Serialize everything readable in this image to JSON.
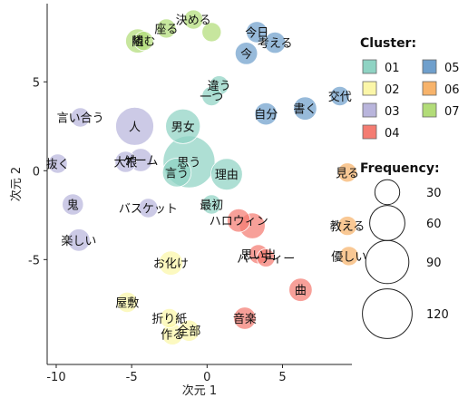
{
  "chart_data": {
    "type": "scatter",
    "xlabel": "次元 1",
    "ylabel": "次元 2",
    "xlim": [
      -10.6,
      9.6
    ],
    "ylim": [
      -10.9,
      9.4
    ],
    "xticks": [
      -10,
      -5,
      0,
      5
    ],
    "yticks": [
      -5,
      0,
      5
    ],
    "grid": false,
    "legend_placement": "right",
    "cluster_legend": {
      "title": "Cluster:",
      "items": [
        {
          "name": "01",
          "color": "#8fd3c3"
        },
        {
          "name": "02",
          "color": "#fbf6a8"
        },
        {
          "name": "03",
          "color": "#b9b5dc"
        },
        {
          "name": "04",
          "color": "#f47c72"
        },
        {
          "name": "05",
          "color": "#6f9fcc"
        },
        {
          "name": "06",
          "color": "#f7b36b"
        },
        {
          "name": "07",
          "color": "#b2dc78"
        }
      ]
    },
    "size_legend": {
      "title": "Frequency:",
      "values": [
        30,
        60,
        90,
        120
      ]
    },
    "points": [
      {
        "word": "座る",
        "x": -2.7,
        "y": 8.0,
        "freq": 18,
        "cluster": "07"
      },
      {
        "word": "決める",
        "x": -0.9,
        "y": 8.5,
        "freq": 18,
        "cluster": "07"
      },
      {
        "word": "隣",
        "x": -4.6,
        "y": 7.3,
        "freq": 28,
        "cluster": "07"
      },
      {
        "word": "組む",
        "x": -4.2,
        "y": 7.3,
        "freq": 18,
        "cluster": "07"
      },
      {
        "word": "",
        "x": 0.3,
        "y": 7.8,
        "freq": 18,
        "cluster": "07"
      },
      {
        "word": "今日",
        "x": 3.3,
        "y": 7.8,
        "freq": 22,
        "cluster": "05"
      },
      {
        "word": "考える",
        "x": 4.5,
        "y": 7.2,
        "freq": 22,
        "cluster": "05"
      },
      {
        "word": "今",
        "x": 2.6,
        "y": 6.6,
        "freq": 24,
        "cluster": "05"
      },
      {
        "word": "違う",
        "x": 0.8,
        "y": 4.8,
        "freq": 18,
        "cluster": "01"
      },
      {
        "word": "一つ",
        "x": 0.3,
        "y": 4.2,
        "freq": 18,
        "cluster": "01"
      },
      {
        "word": "交代",
        "x": 8.8,
        "y": 4.2,
        "freq": 18,
        "cluster": "05"
      },
      {
        "word": "言い合う",
        "x": -8.4,
        "y": 3.0,
        "freq": 18,
        "cluster": "03"
      },
      {
        "word": "自分",
        "x": 3.9,
        "y": 3.2,
        "freq": 24,
        "cluster": "05"
      },
      {
        "word": "書く",
        "x": 6.5,
        "y": 3.5,
        "freq": 26,
        "cluster": "05"
      },
      {
        "word": "人",
        "x": -4.8,
        "y": 2.5,
        "freq": 70,
        "cluster": "03"
      },
      {
        "word": "男女",
        "x": -1.6,
        "y": 2.5,
        "freq": 58,
        "cluster": "01"
      },
      {
        "word": "ゲーム",
        "x": -4.4,
        "y": 0.6,
        "freq": 26,
        "cluster": "03"
      },
      {
        "word": "思う",
        "x": -1.2,
        "y": 0.5,
        "freq": 130,
        "cluster": "01"
      },
      {
        "word": "抜く",
        "x": -9.9,
        "y": 0.4,
        "freq": 18,
        "cluster": "03"
      },
      {
        "word": "大根",
        "x": -5.4,
        "y": 0.5,
        "freq": 22,
        "cluster": "03"
      },
      {
        "word": "言う",
        "x": -2.0,
        "y": -0.1,
        "freq": 40,
        "cluster": "01"
      },
      {
        "word": "理由",
        "x": 1.3,
        "y": -0.2,
        "freq": 48,
        "cluster": "01"
      },
      {
        "word": "見る",
        "x": 9.3,
        "y": -0.1,
        "freq": 18,
        "cluster": "06"
      },
      {
        "word": "鬼",
        "x": -8.9,
        "y": -1.9,
        "freq": 22,
        "cluster": "03"
      },
      {
        "word": "バスケット",
        "x": -3.9,
        "y": -2.1,
        "freq": 18,
        "cluster": "03"
      },
      {
        "word": "最初",
        "x": 0.3,
        "y": -1.9,
        "freq": 18,
        "cluster": "01"
      },
      {
        "word": "教える",
        "x": 9.3,
        "y": -3.1,
        "freq": 18,
        "cluster": "06"
      },
      {
        "word": "ハロウィン",
        "x": 2.1,
        "y": -2.8,
        "freq": 26,
        "cluster": "04"
      },
      {
        "word": "",
        "x": 3.0,
        "y": -3.1,
        "freq": 32,
        "cluster": "04"
      },
      {
        "word": "楽しい",
        "x": -8.5,
        "y": -3.9,
        "freq": 24,
        "cluster": "03"
      },
      {
        "word": "優しい",
        "x": 9.4,
        "y": -4.8,
        "freq": 18,
        "cluster": "06"
      },
      {
        "word": "お化け",
        "x": -2.4,
        "y": -5.2,
        "freq": 28,
        "cluster": "02"
      },
      {
        "word": "思い出",
        "x": 3.4,
        "y": -4.7,
        "freq": 18,
        "cluster": "04"
      },
      {
        "word": "パーティー",
        "x": 3.9,
        "y": -4.9,
        "freq": 16,
        "cluster": "04"
      },
      {
        "word": "曲",
        "x": 6.2,
        "y": -6.7,
        "freq": 26,
        "cluster": "04"
      },
      {
        "word": "屋敷",
        "x": -5.3,
        "y": -7.4,
        "freq": 20,
        "cluster": "02"
      },
      {
        "word": "音楽",
        "x": 2.5,
        "y": -8.3,
        "freq": 24,
        "cluster": "04"
      },
      {
        "word": "折り紙",
        "x": -2.5,
        "y": -8.3,
        "freq": 18,
        "cluster": "02"
      },
      {
        "word": "作る",
        "x": -2.3,
        "y": -9.2,
        "freq": 22,
        "cluster": "02"
      },
      {
        "word": "全部",
        "x": -1.2,
        "y": -9.0,
        "freq": 22,
        "cluster": "02"
      }
    ]
  }
}
